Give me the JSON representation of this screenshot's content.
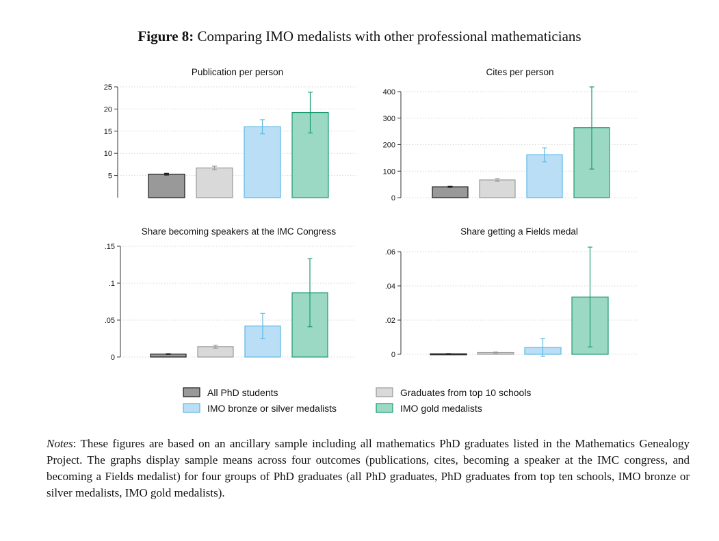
{
  "figure": {
    "label": "Figure 8:",
    "title": "Comparing IMO medalists with other professional mathematicians"
  },
  "groups": [
    "All PhD students",
    "Graduates from top 10 schools",
    "IMO bronze or silver medalists",
    "IMO gold medalists"
  ],
  "colors": {
    "fill": [
      "#999999",
      "#d9d9d9",
      "#b9def6",
      "#9bd9c4"
    ],
    "stroke": [
      "#1a1a1a",
      "#999999",
      "#5cb8e6",
      "#1a9a6e"
    ]
  },
  "chart_data": [
    {
      "type": "bar",
      "title": "Publication per person",
      "categories": [
        "All PhD students",
        "Graduates from top 10 schools",
        "IMO bronze or silver medalists",
        "IMO gold medalists"
      ],
      "values": [
        5.3,
        6.7,
        16.0,
        19.2
      ],
      "ci_low": [
        5.1,
        6.3,
        14.4,
        14.6
      ],
      "ci_high": [
        5.5,
        7.1,
        17.6,
        23.8
      ],
      "yticks": [
        5,
        10,
        15,
        20,
        25
      ],
      "ytick_labels": [
        "5",
        "10",
        "15",
        "20",
        "25"
      ],
      "ylim": [
        0,
        25
      ],
      "baseline": 0
    },
    {
      "type": "bar",
      "title": "Cites per person",
      "categories": [
        "All PhD students",
        "Graduates from top 10 schools",
        "IMO bronze or silver medalists",
        "IMO gold medalists"
      ],
      "values": [
        41,
        67,
        162,
        264
      ],
      "ci_low": [
        39,
        62,
        135,
        108
      ],
      "ci_high": [
        43,
        72,
        188,
        418
      ],
      "yticks": [
        0,
        100,
        200,
        300,
        400
      ],
      "ytick_labels": [
        "0",
        "100",
        "200",
        "300",
        "400"
      ],
      "ylim": [
        0,
        400
      ],
      "baseline": 0
    },
    {
      "type": "bar",
      "title": "Share becoming speakers at the IMC Congress",
      "categories": [
        "All PhD students",
        "Graduates from top 10 schools",
        "IMO bronze or silver medalists",
        "IMO gold medalists"
      ],
      "values": [
        0.004,
        0.014,
        0.042,
        0.087
      ],
      "ci_low": [
        0.0035,
        0.012,
        0.025,
        0.041
      ],
      "ci_high": [
        0.0045,
        0.016,
        0.059,
        0.133
      ],
      "yticks": [
        0,
        0.05,
        0.1,
        0.15
      ],
      "ytick_labels": [
        "0",
        ".05",
        ".1",
        ".15"
      ],
      "ylim": [
        0,
        0.15
      ],
      "baseline": 0
    },
    {
      "type": "bar",
      "title": "Share getting a Fields medal",
      "categories": [
        "All PhD students",
        "Graduates from top 10 schools",
        "IMO bronze or silver medalists",
        "IMO gold medalists"
      ],
      "values": [
        0.0003,
        0.001,
        0.004,
        0.0335
      ],
      "ci_low": [
        0.0002,
        0.0007,
        -0.0012,
        0.0043
      ],
      "ci_high": [
        0.0004,
        0.0013,
        0.0092,
        0.0627
      ],
      "yticks": [
        0,
        0.02,
        0.04,
        0.06
      ],
      "ytick_labels": [
        "0",
        ".02",
        ".04",
        ".06"
      ],
      "ylim": [
        0,
        0.06
      ],
      "baseline": 0
    }
  ],
  "legend": {
    "items": [
      "All PhD students",
      "Graduates from top 10 schools",
      "IMO bronze or silver medalists",
      "IMO gold medalists"
    ]
  },
  "notes": {
    "label": "Notes",
    "text": ": These figures are based on an ancillary sample including all mathematics PhD graduates listed in the Mathematics Genealogy Project. The graphs display sample means across four outcomes (publications, cites, becoming a speaker at the IMC congress, and becoming a Fields medalist) for four groups of PhD graduates (all PhD graduates, PhD graduates from top ten schools, IMO bronze or silver medalists, IMO gold medalists)."
  }
}
